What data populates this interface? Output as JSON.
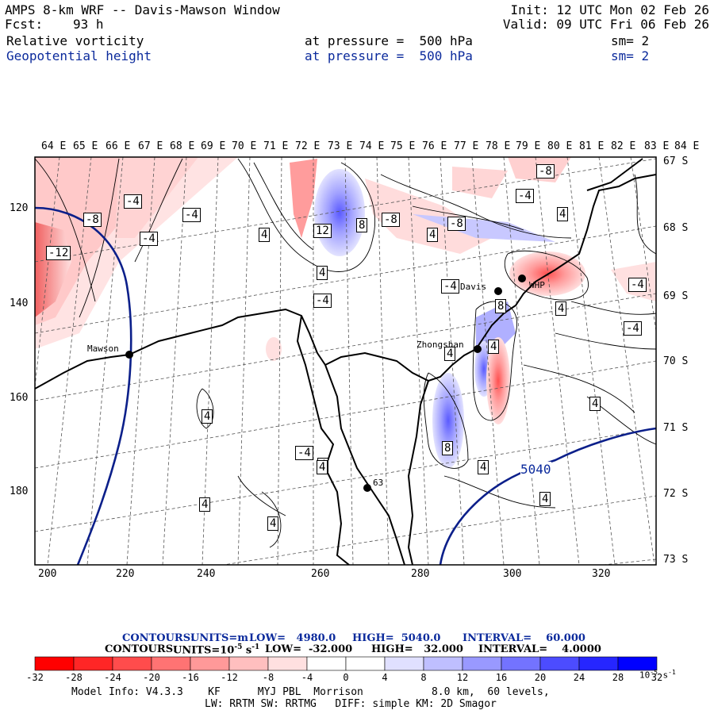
{
  "header": {
    "title": "AMPS 8-km WRF -- Davis-Mawson Window",
    "init": "Init: 12 UTC Mon 02 Feb 26",
    "fcst_label": "Fcst:",
    "fcst_value": "93 h",
    "valid": "Valid: 09 UTC Fri 06 Feb 26"
  },
  "fields": [
    {
      "name": "Relative vorticity",
      "level": "at pressure =  500 hPa",
      "smooth": "sm= 2",
      "color": "#000000"
    },
    {
      "name": "Geopotential height",
      "level": "at pressure =  500 hPa",
      "smooth": "sm= 2",
      "color": "#0b2a9c"
    }
  ],
  "longitude_labels": [
    "64 E",
    "65 E",
    "66 E",
    "67 E",
    "68 E",
    "69 E",
    "70 E",
    "71 E",
    "72 E",
    "73 E",
    "74 E",
    "75 E",
    "76 E",
    "77 E",
    "78 E",
    "79 E",
    "80 E",
    "81 E",
    "82 E",
    "83 E",
    "84 E"
  ],
  "latitude_labels": [
    "67 S",
    "68 S",
    "69 S",
    "70 S",
    "71 S",
    "72 S",
    "73 S"
  ],
  "x_ticks": [
    "200",
    "220",
    "240",
    "260",
    "280",
    "300",
    "320"
  ],
  "y_ticks": [
    "120",
    "140",
    "160",
    "180"
  ],
  "stations": [
    {
      "name": "Mawson"
    },
    {
      "name": "Davis"
    },
    {
      "name": "WHP"
    },
    {
      "name": "Zhongshan"
    },
    {
      "name": "63"
    }
  ],
  "contour_labels": [
    "-4",
    "-4",
    "-4",
    "-8",
    "-12",
    "-8",
    "-4",
    "4",
    "12",
    "8",
    "-8",
    "4",
    "8",
    "-8",
    "-4",
    "4",
    "-4",
    "4",
    "-4",
    "-4",
    "4",
    "4",
    "4",
    "4",
    "8",
    "4",
    "4",
    "-4",
    "4",
    "4",
    "8",
    "4",
    "4",
    "4",
    "4"
  ],
  "height_contour_label": "5040",
  "contour_info": {
    "line1_prefix": "CONTOURS:",
    "line1_units": "UNITS=m",
    "line1_low": "LOW=   4980.0",
    "line1_high": "HIGH=  5040.0",
    "line1_interval": "INTERVAL=    60.000",
    "line2_prefix": "CONTOURS:",
    "line2_units": "UNITS=10",
    "line2_exp": "-5",
    "line2_s": "s",
    "line2_s_exp": "-1",
    "line2_low": "LOW=  -32.000",
    "line2_high": "HIGH=   32.000",
    "line2_interval": "INTERVAL=    4.0000"
  },
  "colorbar": {
    "labels": [
      "-32",
      "-28",
      "-24",
      "-20",
      "-16",
      "-12",
      "-8",
      "-4",
      "0",
      "4",
      "8",
      "12",
      "16",
      "20",
      "24",
      "28",
      "32"
    ],
    "unit_base": "10",
    "unit_exp": "-5",
    "unit_s": "s",
    "unit_s_exp": "-1",
    "colors": [
      "#ff0000",
      "#ff2626",
      "#ff4c4c",
      "#ff7373",
      "#ff9999",
      "#ffbfbf",
      "#ffe0e0",
      "#ffffff",
      "#ffffff",
      "#e0e0ff",
      "#bfbfff",
      "#9999ff",
      "#7373ff",
      "#4c4cff",
      "#2626ff",
      "#0000ff"
    ]
  },
  "model_info": {
    "line1": "Model Info: V4.3.3    KF      MYJ PBL  Morrison           8.0 km,  60 levels,",
    "line2": "LW: RRTM SW: RRTMG   DIFF: simple KM: 2D Smagor"
  }
}
